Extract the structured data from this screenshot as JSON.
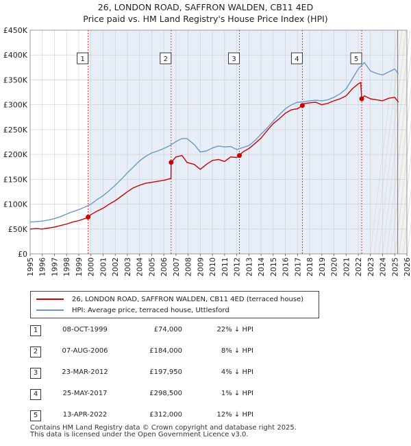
{
  "chart_data": {
    "type": "line",
    "title": "26, LONDON ROAD, SAFFRON WALDEN, CB11 4ED",
    "subtitle": "Price paid vs. HM Land Registry's House Price Index (HPI)",
    "xlabel": "",
    "ylabel": "",
    "xlim": [
      1995,
      2026
    ],
    "ylim": [
      0,
      450000
    ],
    "x_ticks": [
      "1995",
      "1996",
      "1997",
      "1998",
      "1999",
      "2000",
      "2001",
      "2002",
      "2003",
      "2004",
      "2005",
      "2006",
      "2007",
      "2008",
      "2009",
      "2010",
      "2011",
      "2012",
      "2013",
      "2014",
      "2015",
      "2016",
      "2017",
      "2018",
      "2019",
      "2020",
      "2021",
      "2022",
      "2023",
      "2024",
      "2025",
      "2026"
    ],
    "y_ticks": [
      {
        "value": 0,
        "label": "£0"
      },
      {
        "value": 50000,
        "label": "£50K"
      },
      {
        "value": 100000,
        "label": "£100K"
      },
      {
        "value": 150000,
        "label": "£150K"
      },
      {
        "value": 200000,
        "label": "£200K"
      },
      {
        "value": 250000,
        "label": "£250K"
      },
      {
        "value": 300000,
        "label": "£300K"
      },
      {
        "value": 350000,
        "label": "£350K"
      },
      {
        "value": 400000,
        "label": "£400K"
      },
      {
        "value": 450000,
        "label": "£450K"
      }
    ],
    "grid": true,
    "series": [
      {
        "name": "26, LONDON ROAD, SAFFRON WALDEN, CB11 4ED (terraced house)",
        "color": "#cc0000",
        "x": [
          1995.0,
          1995.5,
          1996.0,
          1996.5,
          1997.0,
          1997.5,
          1998.0,
          1998.5,
          1999.0,
          1999.5,
          1999.77,
          2000.0,
          2000.5,
          2001.0,
          2001.5,
          2002.0,
          2002.5,
          2003.0,
          2003.5,
          2004.0,
          2004.5,
          2005.0,
          2005.5,
          2006.0,
          2006.59,
          2006.6,
          2007.0,
          2007.5,
          2007.9,
          2008.5,
          2009.0,
          2009.5,
          2010.0,
          2010.5,
          2011.0,
          2011.5,
          2012.0,
          2012.22,
          2012.5,
          2013.0,
          2013.5,
          2014.0,
          2014.5,
          2015.0,
          2015.5,
          2016.0,
          2016.5,
          2017.0,
          2017.4,
          2017.5,
          2018.0,
          2018.5,
          2019.0,
          2019.5,
          2020.0,
          2020.5,
          2021.0,
          2021.5,
          2022.0,
          2022.2,
          2022.28,
          2022.5,
          2023.0,
          2023.5,
          2024.0,
          2024.5,
          2025.0,
          2025.3
        ],
        "values": [
          50000,
          51000,
          50000,
          52000,
          54000,
          57000,
          60000,
          64000,
          67000,
          71000,
          74000,
          79000,
          86000,
          92000,
          100000,
          107000,
          116000,
          125000,
          133000,
          138000,
          142000,
          144000,
          146000,
          148000,
          152000,
          184000,
          195000,
          198000,
          184000,
          180000,
          170000,
          180000,
          188000,
          190000,
          186000,
          195000,
          194000,
          197950,
          205000,
          212000,
          222000,
          233000,
          248000,
          262000,
          272000,
          283000,
          290000,
          292000,
          298500,
          302000,
          304000,
          305000,
          300000,
          303000,
          308000,
          312000,
          318000,
          332000,
          342000,
          345000,
          312000,
          318000,
          312000,
          310000,
          308000,
          313000,
          315000,
          305000
        ]
      },
      {
        "name": "HPI: Average price, terraced house, Uttlesford",
        "color": "#6699cc",
        "x": [
          1995.0,
          1995.5,
          1996.0,
          1996.5,
          1997.0,
          1997.5,
          1998.0,
          1998.5,
          1999.0,
          1999.5,
          2000.0,
          2000.5,
          2001.0,
          2001.5,
          2002.0,
          2002.5,
          2003.0,
          2003.5,
          2004.0,
          2004.5,
          2005.0,
          2005.5,
          2006.0,
          2006.5,
          2007.0,
          2007.5,
          2007.9,
          2008.5,
          2009.0,
          2009.5,
          2010.0,
          2010.5,
          2011.0,
          2011.5,
          2012.0,
          2012.5,
          2013.0,
          2013.5,
          2014.0,
          2014.5,
          2015.0,
          2015.5,
          2016.0,
          2016.5,
          2017.0,
          2017.5,
          2018.0,
          2018.5,
          2019.0,
          2019.5,
          2020.0,
          2020.5,
          2021.0,
          2021.5,
          2022.0,
          2022.5,
          2023.0,
          2023.5,
          2024.0,
          2024.5,
          2025.0,
          2025.3
        ],
        "values": [
          64000,
          65000,
          66000,
          68000,
          71000,
          75000,
          80000,
          85000,
          89000,
          94000,
          100000,
          109000,
          117000,
          127000,
          138000,
          150000,
          163000,
          175000,
          187000,
          196000,
          203000,
          207000,
          212000,
          218000,
          226000,
          232000,
          232000,
          220000,
          205000,
          207000,
          213000,
          217000,
          215000,
          216000,
          210000,
          214000,
          218000,
          228000,
          241000,
          253000,
          267000,
          280000,
          292000,
          300000,
          305000,
          306000,
          308000,
          309000,
          308000,
          310000,
          315000,
          322000,
          332000,
          352000,
          372000,
          385000,
          368000,
          363000,
          360000,
          366000,
          372000,
          362000
        ]
      }
    ],
    "sales": [
      {
        "marker": "1",
        "x": 1999.77,
        "value": 74000
      },
      {
        "marker": "2",
        "x": 2006.6,
        "value": 184000
      },
      {
        "marker": "3",
        "x": 2012.22,
        "value": 197950
      },
      {
        "marker": "4",
        "x": 2017.4,
        "value": 298500
      },
      {
        "marker": "5",
        "x": 2022.28,
        "value": 312000
      }
    ]
  },
  "legend": {
    "property_label": "26, LONDON ROAD, SAFFRON WALDEN, CB11 4ED (terraced house)",
    "hpi_label": "HPI: Average price, terraced house, Uttlesford"
  },
  "sales_table": [
    {
      "marker": "1",
      "date": "08-OCT-1999",
      "price": "£74,000",
      "hpi": "22% ↓ HPI"
    },
    {
      "marker": "2",
      "date": "07-AUG-2006",
      "price": "£184,000",
      "hpi": "8% ↓ HPI"
    },
    {
      "marker": "3",
      "date": "23-MAR-2012",
      "price": "£197,950",
      "hpi": "4% ↓ HPI"
    },
    {
      "marker": "4",
      "date": "25-MAY-2017",
      "price": "£298,500",
      "hpi": "1% ↓ HPI"
    },
    {
      "marker": "5",
      "date": "13-APR-2022",
      "price": "£312,000",
      "hpi": "12% ↓ HPI"
    }
  ],
  "footer": {
    "line1": "Contains HM Land Registry data © Crown copyright and database right 2025.",
    "line2": "This data is licensed under the Open Government Licence v3.0."
  },
  "colors": {
    "property": "#cc0000",
    "hpi": "#6699cc",
    "shade": "#e8eef8",
    "grid": "#cccccc"
  }
}
